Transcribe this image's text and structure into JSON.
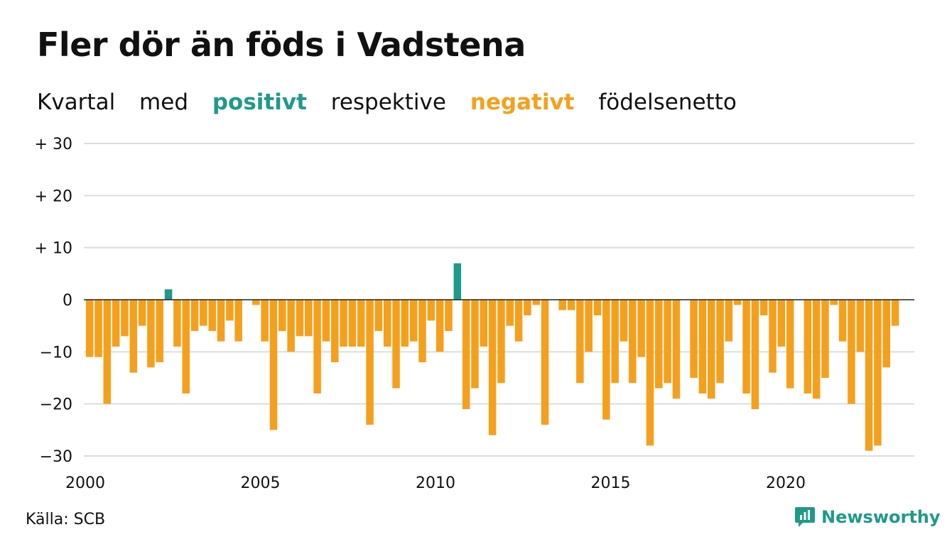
{
  "title": "Fler dör än föds i Vadstena",
  "subtitle": {
    "part1": "Kvartal",
    "part2": "med",
    "positive": "positivt",
    "part3": "respektive",
    "negative": "negativt",
    "part4": "födelsenetto"
  },
  "colors": {
    "positive": "#1f9a8a",
    "negative": "#f5a01d",
    "grid": "#dddddd",
    "zero": "#222222"
  },
  "source": "Källa: SCB",
  "brand": {
    "name": "Newsworthy",
    "icon": "newsworthy-logo-icon"
  },
  "chart_data": {
    "type": "bar",
    "title": "Fler dör än föds i Vadstena",
    "ylim": [
      -30,
      30
    ],
    "y_ticks": [
      30,
      20,
      10,
      0,
      -10,
      -20,
      -30
    ],
    "y_tick_labels": [
      "+ 30",
      "+ 20",
      "+ 10",
      "0",
      "−10",
      "−20",
      "−30"
    ],
    "x_ticks": [
      2000,
      2005,
      2010,
      2015,
      2020
    ],
    "x_tick_labels": [
      "2000",
      "2005",
      "2010",
      "2015",
      "2020"
    ],
    "grid": true,
    "start": "2000 Q1",
    "values": [
      -11,
      -11,
      -20,
      -9,
      -7,
      -14,
      -5,
      -13,
      -12,
      2,
      -9,
      -18,
      -6,
      -5,
      -6,
      -8,
      -4,
      -8,
      0,
      -1,
      -8,
      -25,
      -6,
      -10,
      -7,
      -7,
      -18,
      -8,
      -12,
      -9,
      -9,
      -9,
      -24,
      -6,
      -9,
      -17,
      -9,
      -8,
      -12,
      -4,
      -10,
      -6,
      7,
      -21,
      -17,
      -9,
      -26,
      -16,
      -5,
      -8,
      -3,
      -1,
      -24,
      0,
      -2,
      -2,
      -16,
      -10,
      -3,
      -23,
      -16,
      -8,
      -16,
      -11,
      -28,
      -17,
      -16,
      -19,
      0,
      -15,
      -18,
      -19,
      -16,
      -8,
      -1,
      -18,
      -21,
      -3,
      -14,
      -9,
      -17,
      0,
      -18,
      -19,
      -15,
      -1,
      -8,
      -20,
      -10,
      -29,
      -28,
      -13,
      -5
    ]
  }
}
